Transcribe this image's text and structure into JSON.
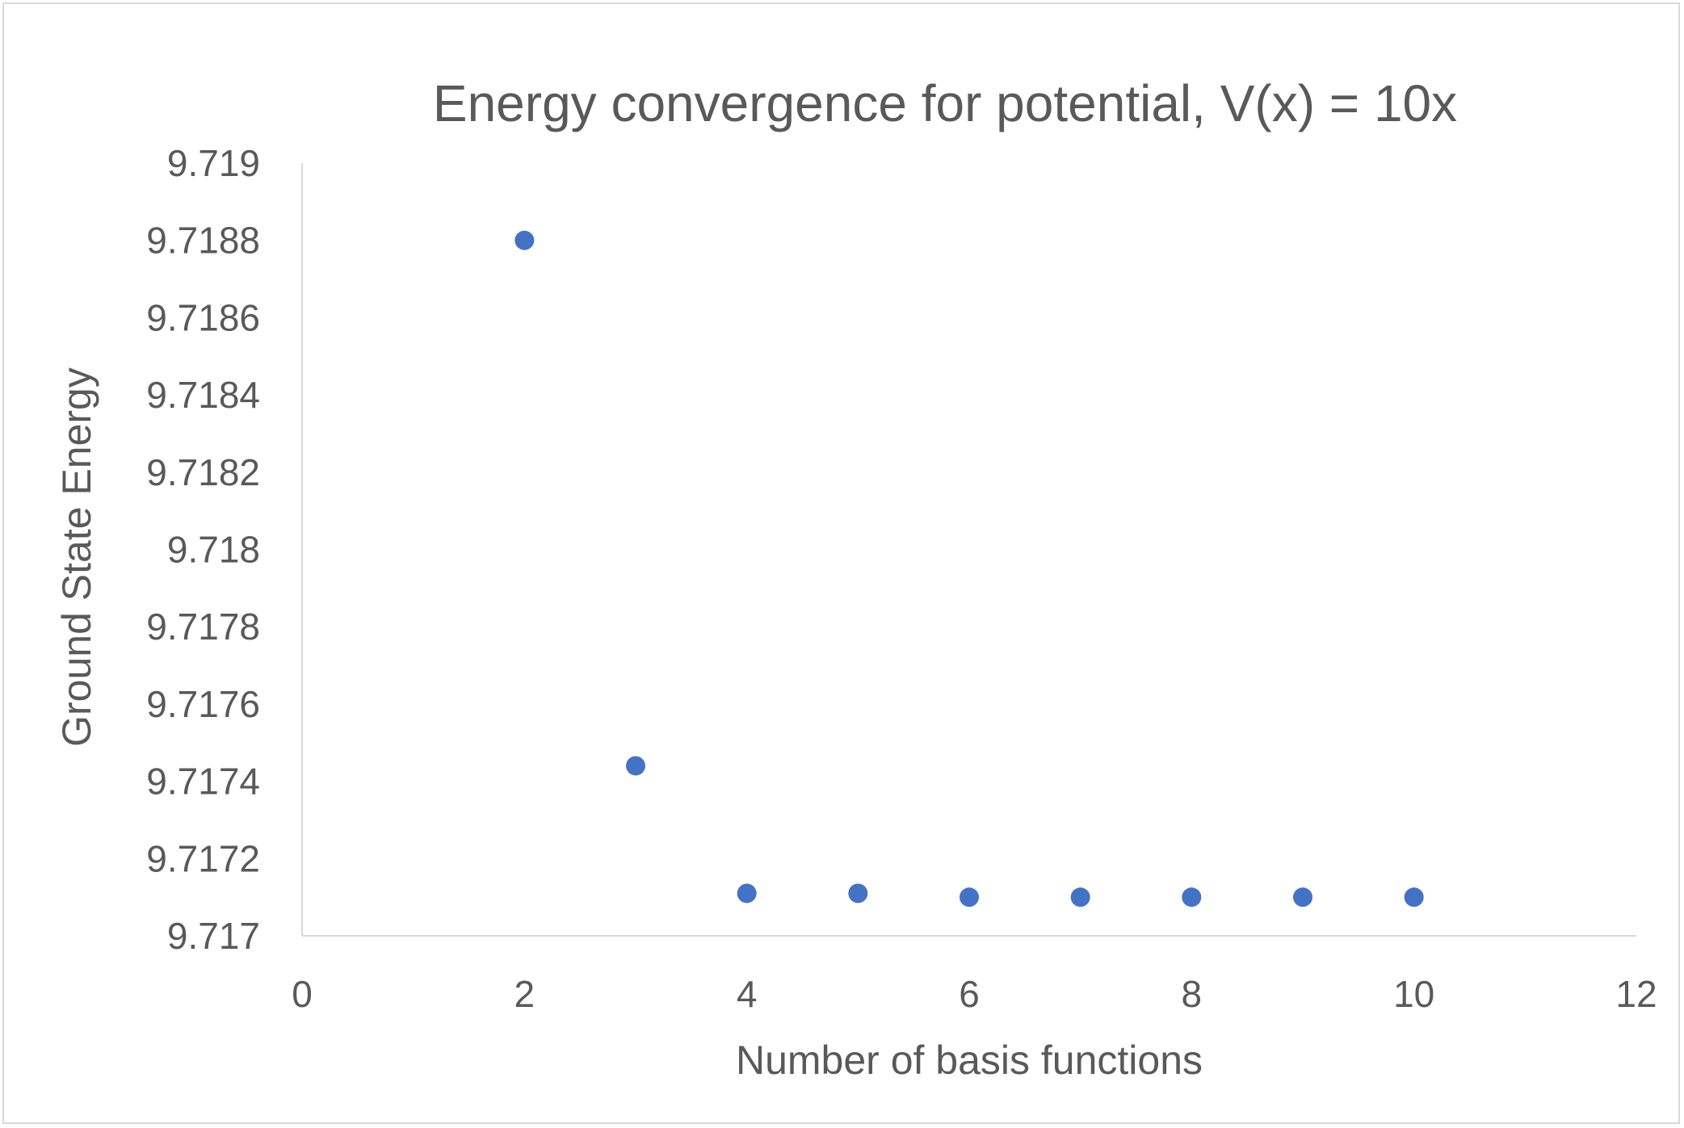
{
  "chart_data": {
    "type": "scatter",
    "title": "Energy convergence for potential, V(x) = 10x",
    "xlabel": "Number of basis functions",
    "ylabel": "Ground State Energy",
    "xlim": [
      0,
      12
    ],
    "ylim": [
      9.717,
      9.719
    ],
    "x_ticks": [
      "0",
      "2",
      "4",
      "6",
      "8",
      "10",
      "12"
    ],
    "y_ticks": [
      "9.717",
      "9.7172",
      "9.7174",
      "9.7176",
      "9.7178",
      "9.718",
      "9.7182",
      "9.7184",
      "9.7186",
      "9.7188",
      "9.719"
    ],
    "grid": false,
    "legend": "none",
    "marker_color": "#4472c4",
    "series": [
      {
        "x": [
          2,
          3,
          4,
          5,
          6,
          7,
          8,
          9,
          10
        ],
        "y": [
          9.7188,
          9.71744,
          9.71711,
          9.71711,
          9.7171,
          9.7171,
          9.7171,
          9.7171,
          9.7171
        ]
      }
    ]
  }
}
